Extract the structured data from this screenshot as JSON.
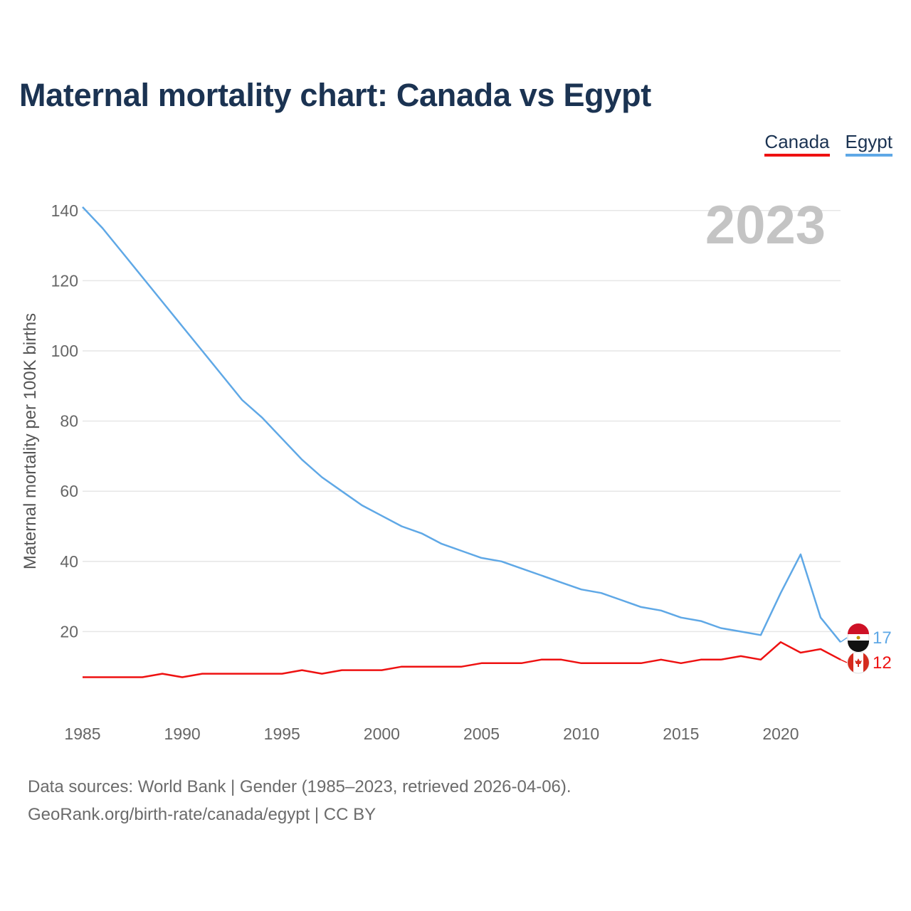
{
  "title": "Maternal mortality chart: Canada vs Egypt",
  "legend": [
    {
      "name": "Canada",
      "color": "#ee1111"
    },
    {
      "name": "Egypt",
      "color": "#5fa8e6"
    }
  ],
  "footer": {
    "line1": "Data sources: World Bank | Gender (1985–2023, retrieved 2026-04-06).",
    "line2": "GeoRank.org/birth-rate/canada/egypt | CC BY"
  },
  "chart_data": {
    "type": "line",
    "title": "Maternal mortality chart: Canada vs Egypt",
    "xlabel": "",
    "ylabel": "Maternal mortality per 100K births",
    "year_label": "2023",
    "xlim": [
      1985,
      2023
    ],
    "ylim": [
      0,
      145
    ],
    "x_ticks": [
      1985,
      1990,
      1995,
      2000,
      2005,
      2010,
      2015,
      2020
    ],
    "y_ticks": [
      20,
      40,
      60,
      80,
      100,
      120,
      140
    ],
    "grid": true,
    "legend_position": "top-right",
    "x": [
      1985,
      1986,
      1987,
      1988,
      1989,
      1990,
      1991,
      1992,
      1993,
      1994,
      1995,
      1996,
      1997,
      1998,
      1999,
      2000,
      2001,
      2002,
      2003,
      2004,
      2005,
      2006,
      2007,
      2008,
      2009,
      2010,
      2011,
      2012,
      2013,
      2014,
      2015,
      2016,
      2017,
      2018,
      2019,
      2020,
      2021,
      2022,
      2023
    ],
    "series": [
      {
        "name": "Canada",
        "color": "#ee1111",
        "end_label": "12",
        "values": [
          7,
          7,
          7,
          7,
          8,
          7,
          8,
          8,
          8,
          8,
          8,
          9,
          8,
          9,
          9,
          9,
          10,
          10,
          10,
          10,
          11,
          11,
          11,
          12,
          12,
          11,
          11,
          11,
          11,
          12,
          11,
          12,
          12,
          13,
          12,
          17,
          14,
          15,
          12
        ]
      },
      {
        "name": "Egypt",
        "color": "#5fa8e6",
        "end_label": "17",
        "values": [
          141,
          135,
          128,
          121,
          114,
          107,
          100,
          93,
          86,
          81,
          75,
          69,
          64,
          60,
          56,
          53,
          50,
          48,
          45,
          43,
          41,
          40,
          38,
          36,
          34,
          32,
          31,
          29,
          27,
          26,
          24,
          23,
          21,
          20,
          19,
          31,
          42,
          24,
          17
        ]
      }
    ]
  }
}
